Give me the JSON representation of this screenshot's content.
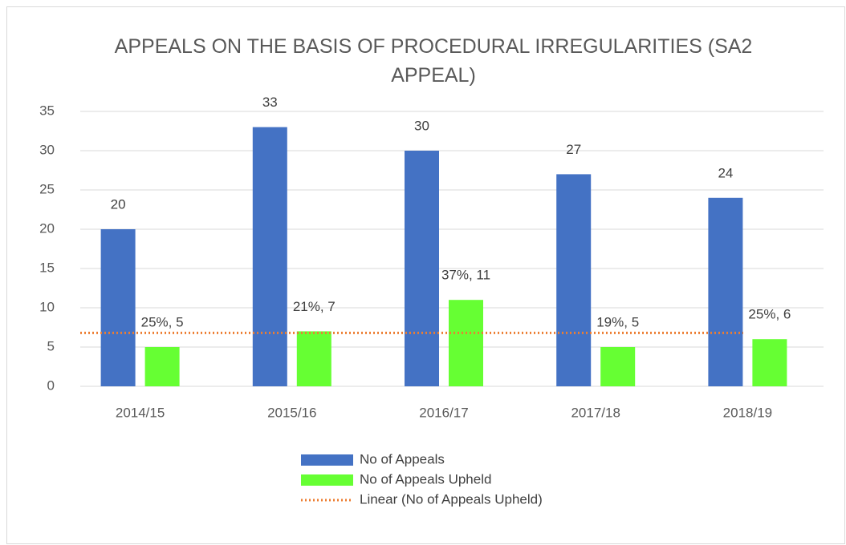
{
  "chart_data": {
    "type": "bar",
    "title": "APPEALS ON THE BASIS OF PROCEDURAL IRREGULARITIES (SA2 APPEAL)",
    "categories": [
      "2014/15",
      "2015/16",
      "2016/17",
      "2017/18",
      "2018/19"
    ],
    "series": [
      {
        "name": "No of Appeals",
        "color": "#4472c4",
        "values": [
          20,
          33,
          30,
          27,
          24
        ]
      },
      {
        "name": "No of Appeals Upheld",
        "color": "#66ff33",
        "values": [
          5,
          7,
          11,
          5,
          6
        ],
        "value_labels": [
          "25%, 5",
          "21%, 7",
          "37%, 11",
          "19%, 5",
          "25%, 6"
        ]
      }
    ],
    "trendline": {
      "name": "Linear (No of Appeals Upheld)",
      "color": "#ed7d31",
      "type": "linear",
      "series": 1
    },
    "ylim": [
      0,
      35
    ],
    "yticks": [
      0,
      5,
      10,
      15,
      20,
      25,
      30,
      35
    ],
    "grid": true,
    "legend": "bottom"
  }
}
